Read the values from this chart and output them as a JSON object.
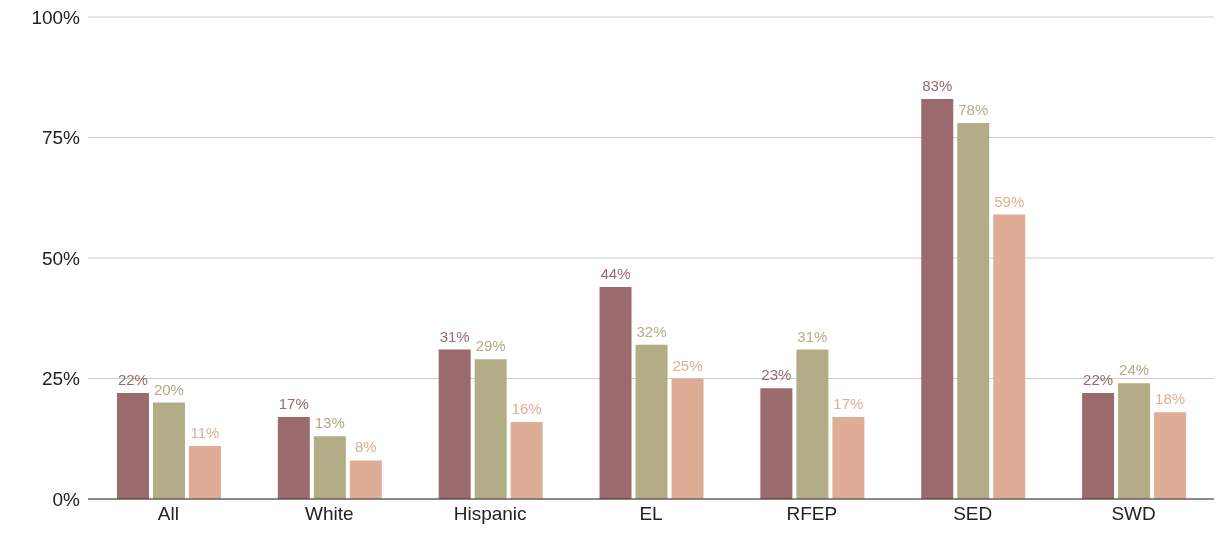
{
  "chart_data": {
    "type": "bar",
    "categories": [
      "All",
      "White",
      "Hispanic",
      "EL",
      "RFEP",
      "SED",
      "SWD"
    ],
    "series": [
      {
        "color": "#9b6a6d",
        "values": [
          22,
          17,
          31,
          44,
          23,
          83,
          22
        ],
        "value_labels": [
          "22%",
          "17%",
          "31%",
          "44%",
          "23%",
          "83%",
          "22%"
        ]
      },
      {
        "color": "#b2ad87",
        "values": [
          20,
          13,
          29,
          32,
          31,
          78,
          24
        ],
        "value_labels": [
          "20%",
          "13%",
          "29%",
          "32%",
          "31%",
          "78%",
          "24%"
        ]
      },
      {
        "color": "#dfad95",
        "values": [
          11,
          8,
          16,
          25,
          17,
          59,
          18
        ],
        "value_labels": [
          "11%",
          "8%",
          "16%",
          "25%",
          "17%",
          "59%",
          "18%"
        ]
      }
    ],
    "ylim": [
      0,
      100
    ],
    "yticks": [
      {
        "value": 0,
        "label": "0%"
      },
      {
        "value": 25,
        "label": "25%"
      },
      {
        "value": 50,
        "label": "50%"
      },
      {
        "value": 75,
        "label": "75%"
      },
      {
        "value": 100,
        "label": "100%"
      }
    ],
    "grid": "y",
    "legend": false
  }
}
